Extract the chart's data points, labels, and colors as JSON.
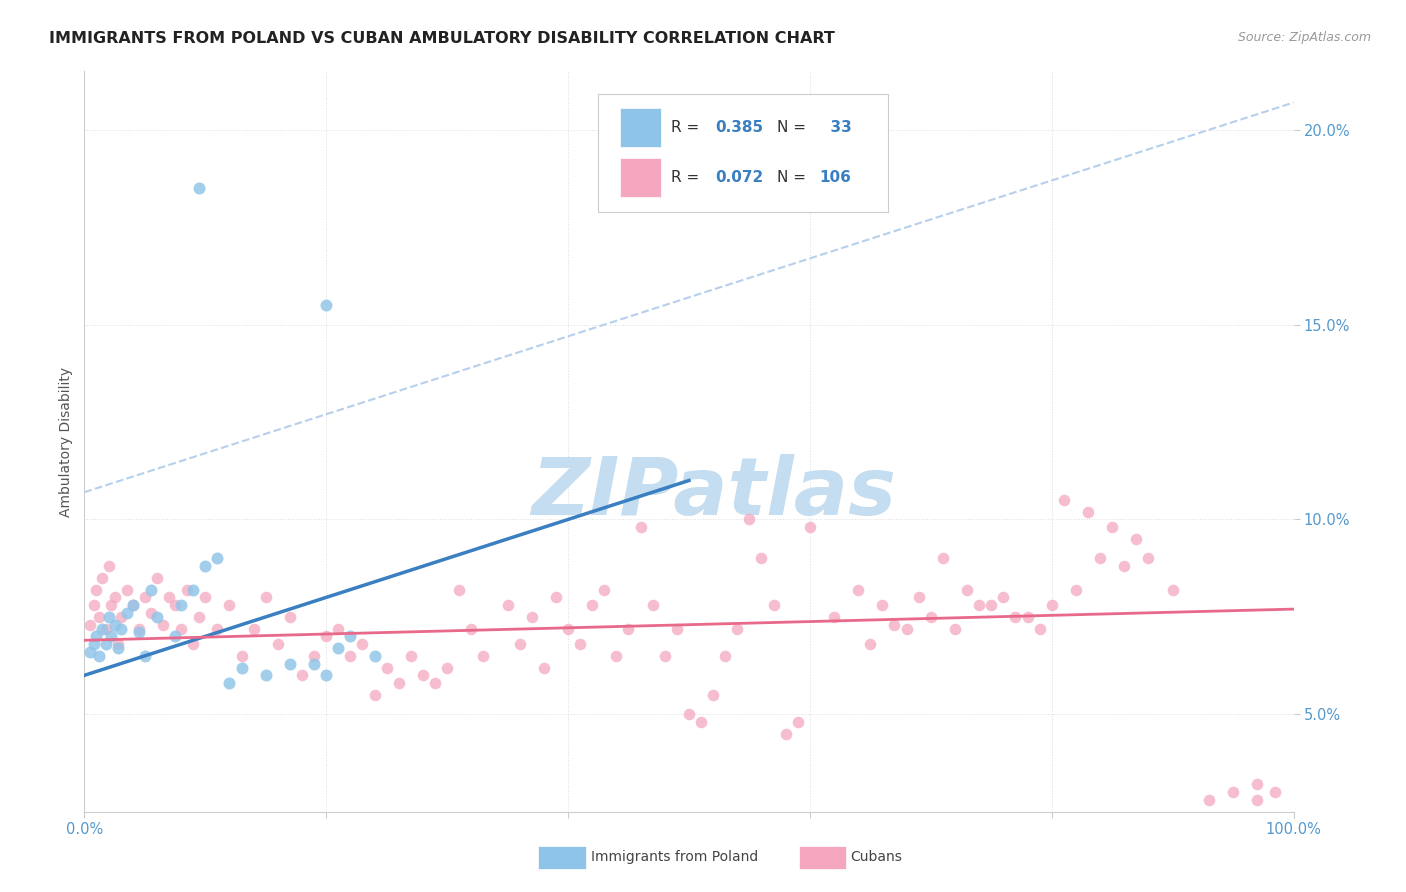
{
  "title": "IMMIGRANTS FROM POLAND VS CUBAN AMBULATORY DISABILITY CORRELATION CHART",
  "source": "Source: ZipAtlas.com",
  "ylabel": "Ambulatory Disability",
  "xlim": [
    0,
    1.0
  ],
  "ylim": [
    0.025,
    0.215
  ],
  "yticks": [
    0.05,
    0.1,
    0.15,
    0.2
  ],
  "ytick_labels": [
    "5.0%",
    "10.0%",
    "15.0%",
    "20.0%"
  ],
  "xticks": [
    0.0,
    0.2,
    0.4,
    0.6,
    0.8,
    1.0
  ],
  "xtick_labels": [
    "0.0%",
    "",
    "",
    "",
    "",
    "100.0%"
  ],
  "poland_color": "#8ec4e8",
  "cuban_color": "#f4a7be",
  "poland_line_color": "#3a7fc1",
  "cuban_line_color": "#e8698a",
  "diag_line_color": "#aac8e8",
  "R_poland": 0.385,
  "N_poland": 33,
  "R_cuban": 0.072,
  "N_cuban": 106,
  "legend_label_poland": "Immigrants from Poland",
  "legend_label_cuban": "Cubans",
  "poland_line_x0": 0.0,
  "poland_line_y0": 0.06,
  "poland_line_x1": 0.5,
  "poland_line_y1": 0.11,
  "cuban_line_x0": 0.0,
  "cuban_line_y0": 0.069,
  "cuban_line_x1": 1.0,
  "cuban_line_y1": 0.077,
  "diag_line_x0": 0.0,
  "diag_line_y0": 0.107,
  "diag_line_x1": 1.0,
  "diag_line_y1": 0.207,
  "background_color": "#ffffff",
  "grid_color": "#dddddd",
  "watermark_color": "#c5ddf0",
  "title_fontsize": 11.5,
  "source_fontsize": 9,
  "tick_fontsize": 10.5,
  "legend_fontsize": 11
}
